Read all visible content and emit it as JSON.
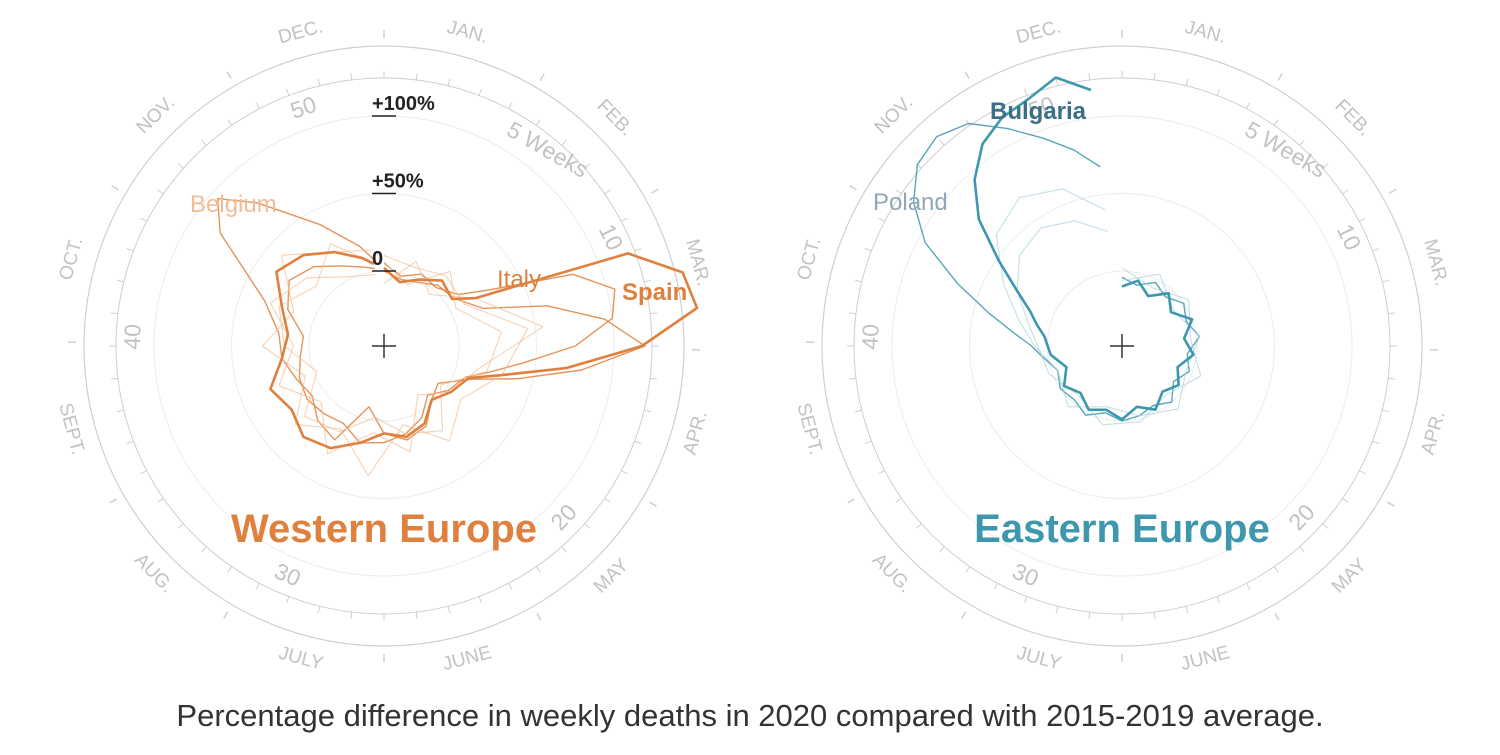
{
  "caption": "Percentage difference in weekly deaths in 2020 compared with 2015-2019 average.",
  "colors": {
    "western": "#e0803e",
    "western_light": "#f2bd95",
    "eastern": "#3e98ad",
    "eastern_dark": "#3a6f86",
    "eastern_light": "#a8d3de",
    "poland_label": "#8fa8b4",
    "axis": "#cfcfcf",
    "axis_text": "#c2c2c2",
    "ring": "#ececec",
    "center_cross": "#333333"
  },
  "axis": {
    "month_labels": [
      "JAN.",
      "FEB.",
      "MAR.",
      "APR.",
      "MAY",
      "JUNE",
      "JULY",
      "AUG.",
      "SEPT.",
      "OCT.",
      "NOV.",
      "DEC."
    ],
    "week_numbers": [
      "5 Weeks",
      "10",
      "20",
      "30",
      "40",
      "50"
    ],
    "ring_labels": [
      "0",
      "+50%",
      "+100%"
    ]
  },
  "chart_data": [
    {
      "type": "radial-line",
      "title": "Western Europe",
      "theta_unit": "week of 2020 (clockwise from top)",
      "r_unit": "% difference in weekly deaths vs 2015-2019 average",
      "r_rings": [
        0,
        50,
        100
      ],
      "series": [
        {
          "name": "Spain",
          "emphasis": true,
          "values": [
            [
              1,
              2
            ],
            [
              3,
              -6
            ],
            [
              5,
              0
            ],
            [
              7,
              8
            ],
            [
              9,
              5
            ],
            [
              10,
              18
            ],
            [
              11,
              120
            ],
            [
              12,
              150
            ],
            [
              13,
              155
            ],
            [
              14,
              118
            ],
            [
              15,
              70
            ],
            [
              16,
              30
            ],
            [
              17,
              10
            ],
            [
              19,
              4
            ],
            [
              21,
              -2
            ],
            [
              23,
              8
            ],
            [
              25,
              12
            ],
            [
              27,
              8
            ],
            [
              29,
              16
            ],
            [
              31,
              26
            ],
            [
              33,
              30
            ],
            [
              35,
              24
            ],
            [
              37,
              30
            ],
            [
              39,
              18
            ],
            [
              41,
              14
            ],
            [
              43,
              22
            ],
            [
              45,
              36
            ],
            [
              47,
              30
            ],
            [
              49,
              20
            ],
            [
              51,
              10
            ],
            [
              52,
              5
            ]
          ]
        },
        {
          "name": "Italy",
          "values": [
            [
              1,
              5
            ],
            [
              3,
              -2
            ],
            [
              5,
              4
            ],
            [
              7,
              2
            ],
            [
              9,
              10
            ],
            [
              10,
              30
            ],
            [
              11,
              82
            ],
            [
              12,
              105
            ],
            [
              13,
              100
            ],
            [
              14,
              75
            ],
            [
              15,
              42
            ],
            [
              16,
              22
            ],
            [
              17,
              8
            ],
            [
              19,
              2
            ],
            [
              21,
              -6
            ],
            [
              23,
              4
            ],
            [
              25,
              10
            ],
            [
              27,
              14
            ],
            [
              29,
              16
            ],
            [
              31,
              8
            ],
            [
              33,
              10
            ],
            [
              35,
              12
            ],
            [
              37,
              10
            ],
            [
              39,
              6
            ],
            [
              41,
              4
            ],
            [
              43,
              18
            ],
            [
              45,
              26
            ],
            [
              47,
              20
            ],
            [
              49,
              10
            ],
            [
              51,
              4
            ],
            [
              52,
              2
            ]
          ]
        },
        {
          "name": "Belgium",
          "values": [
            [
              1,
              0
            ],
            [
              3,
              -4
            ],
            [
              5,
              -2
            ],
            [
              7,
              4
            ],
            [
              9,
              6
            ],
            [
              11,
              20
            ],
            [
              12,
              60
            ],
            [
              13,
              95
            ],
            [
              14,
              120
            ],
            [
              15,
              80
            ],
            [
              16,
              40
            ],
            [
              17,
              12
            ],
            [
              19,
              -6
            ],
            [
              21,
              -2
            ],
            [
              23,
              10
            ],
            [
              25,
              14
            ],
            [
              27,
              8
            ],
            [
              29,
              -8
            ],
            [
              31,
              20
            ],
            [
              33,
              16
            ],
            [
              35,
              8
            ],
            [
              37,
              12
            ],
            [
              39,
              18
            ],
            [
              41,
              20
            ],
            [
              43,
              34
            ],
            [
              45,
              80
            ],
            [
              46,
              95
            ],
            [
              47,
              75
            ],
            [
              49,
              40
            ],
            [
              51,
              18
            ],
            [
              52,
              8
            ]
          ]
        },
        {
          "name": "",
          "values": [
            [
              1,
              10
            ],
            [
              4,
              6
            ],
            [
              7,
              12
            ],
            [
              10,
              10
            ],
            [
              13,
              45
            ],
            [
              16,
              30
            ],
            [
              19,
              12
            ],
            [
              22,
              26
            ],
            [
              25,
              4
            ],
            [
              28,
              36
            ],
            [
              31,
              12
            ],
            [
              34,
              28
            ],
            [
              37,
              6
            ],
            [
              40,
              30
            ],
            [
              43,
              14
            ],
            [
              46,
              40
            ],
            [
              49,
              20
            ],
            [
              52,
              14
            ]
          ]
        },
        {
          "name": "",
          "values": [
            [
              1,
              -8
            ],
            [
              4,
              10
            ],
            [
              7,
              -4
            ],
            [
              10,
              18
            ],
            [
              13,
              55
            ],
            [
              16,
              14
            ],
            [
              19,
              4
            ],
            [
              22,
              -10
            ],
            [
              25,
              22
            ],
            [
              28,
              8
            ],
            [
              31,
              30
            ],
            [
              34,
              6
            ],
            [
              37,
              24
            ],
            [
              40,
              10
            ],
            [
              43,
              30
            ],
            [
              46,
              18
            ],
            [
              49,
              2
            ],
            [
              52,
              -2
            ]
          ]
        },
        {
          "name": "",
          "values": [
            [
              1,
              6
            ],
            [
              4,
              -6
            ],
            [
              7,
              16
            ],
            [
              10,
              4
            ],
            [
              13,
              28
            ],
            [
              16,
              20
            ],
            [
              19,
              -4
            ],
            [
              22,
              18
            ],
            [
              25,
              10
            ],
            [
              28,
              -2
            ],
            [
              31,
              14
            ],
            [
              34,
              20
            ],
            [
              37,
              -2
            ],
            [
              40,
              16
            ],
            [
              43,
              24
            ],
            [
              46,
              10
            ],
            [
              49,
              26
            ],
            [
              52,
              6
            ]
          ]
        }
      ]
    },
    {
      "type": "radial-line",
      "title": "Eastern Europe",
      "theta_unit": "week of 2020 (clockwise from top)",
      "r_unit": "% difference in weekly deaths vs 2015-2019 average",
      "r_rings": [
        0,
        50,
        100
      ],
      "series": [
        {
          "name": "Bulgaria",
          "emphasis": true,
          "values": [
            [
              1,
              -10
            ],
            [
              3,
              -5
            ],
            [
              5,
              -12
            ],
            [
              7,
              -3
            ],
            [
              9,
              -10
            ],
            [
              11,
              0
            ],
            [
              13,
              -8
            ],
            [
              15,
              -2
            ],
            [
              17,
              -10
            ],
            [
              19,
              -4
            ],
            [
              21,
              -9
            ],
            [
              23,
              -2
            ],
            [
              25,
              -8
            ],
            [
              27,
              -1
            ],
            [
              29,
              -6
            ],
            [
              31,
              -2
            ],
            [
              33,
              -8
            ],
            [
              35,
              -3
            ],
            [
              37,
              -10
            ],
            [
              39,
              -2
            ],
            [
              41,
              2
            ],
            [
              42,
              8
            ],
            [
              43,
              15
            ],
            [
              44,
              28
            ],
            [
              45,
              48
            ],
            [
              46,
              75
            ],
            [
              47,
              95
            ],
            [
              48,
              110
            ],
            [
              49,
              118
            ],
            [
              50,
              122
            ],
            [
              51,
              130
            ],
            [
              52,
              118
            ]
          ]
        },
        {
          "name": "Poland",
          "values": [
            [
              1,
              -4
            ],
            [
              3,
              -8
            ],
            [
              5,
              -2
            ],
            [
              7,
              -6
            ],
            [
              9,
              0
            ],
            [
              11,
              -4
            ],
            [
              13,
              2
            ],
            [
              15,
              -6
            ],
            [
              17,
              -2
            ],
            [
              19,
              -8
            ],
            [
              21,
              0
            ],
            [
              23,
              -5
            ],
            [
              25,
              -2
            ],
            [
              27,
              0
            ],
            [
              29,
              -4
            ],
            [
              31,
              2
            ],
            [
              33,
              -2
            ],
            [
              35,
              0
            ],
            [
              37,
              -4
            ],
            [
              39,
              4
            ],
            [
              40,
              10
            ],
            [
              41,
              22
            ],
            [
              42,
              40
            ],
            [
              43,
              65
            ],
            [
              44,
              95
            ],
            [
              45,
              115
            ],
            [
              46,
              128
            ],
            [
              47,
              132
            ],
            [
              48,
              126
            ],
            [
              49,
              110
            ],
            [
              50,
              95
            ],
            [
              51,
              82
            ],
            [
              52,
              68
            ]
          ]
        },
        {
          "name": "",
          "values": [
            [
              1,
              -6
            ],
            [
              5,
              4
            ],
            [
              9,
              -8
            ],
            [
              13,
              2
            ],
            [
              17,
              -4
            ],
            [
              21,
              6
            ],
            [
              25,
              -2
            ],
            [
              29,
              -8
            ],
            [
              33,
              4
            ],
            [
              37,
              -4
            ],
            [
              40,
              8
            ],
            [
              42,
              20
            ],
            [
              44,
              38
            ],
            [
              46,
              60
            ],
            [
              48,
              68
            ],
            [
              50,
              60
            ],
            [
              52,
              40
            ]
          ]
        },
        {
          "name": "",
          "values": [
            [
              1,
              2
            ],
            [
              5,
              -6
            ],
            [
              9,
              4
            ],
            [
              13,
              -4
            ],
            [
              17,
              6
            ],
            [
              21,
              -6
            ],
            [
              25,
              2
            ],
            [
              29,
              4
            ],
            [
              33,
              -6
            ],
            [
              37,
              2
            ],
            [
              40,
              6
            ],
            [
              42,
              14
            ],
            [
              44,
              28
            ],
            [
              46,
              40
            ],
            [
              48,
              44
            ],
            [
              50,
              38
            ],
            [
              52,
              26
            ]
          ]
        }
      ]
    }
  ]
}
